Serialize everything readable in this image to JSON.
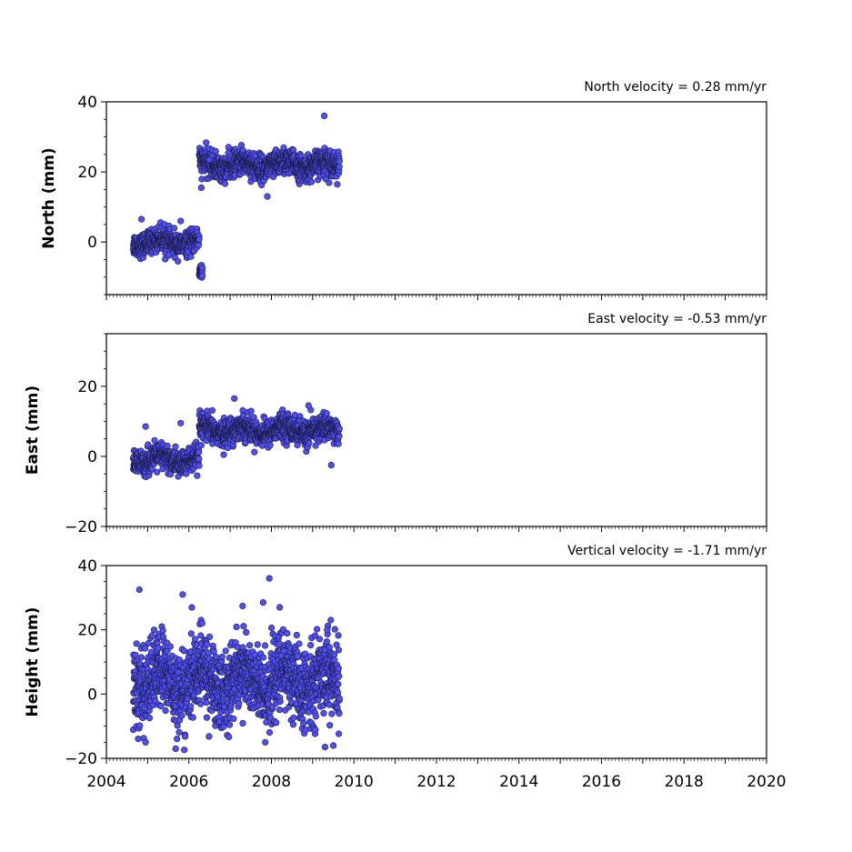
{
  "chart_data": [
    {
      "type": "scatter",
      "title": "North velocity = 0.28 mm/yr",
      "xlabel": "",
      "ylabel": "North (mm)",
      "xlim": [
        2004,
        2020
      ],
      "ylim": [
        -15,
        40
      ],
      "yticks": [
        0,
        20,
        40
      ],
      "show_x_tick_labels": false,
      "marker_color": "#4f4ff5",
      "marker_edge": "#1a1a40",
      "series": [
        {
          "segments": [
            {
              "x": [
                2004.65,
                2006.25
              ],
              "mean": 0,
              "sd": 1.6
            },
            {
              "x": [
                2006.25,
                2006.33
              ],
              "mean": -9,
              "sd": 1.2
            },
            {
              "x": [
                2006.25,
                2009.65
              ],
              "mean": 22,
              "sd": 1.8
            }
          ],
          "extra_points": [
            [
              2004.85,
              6.5
            ],
            [
              2005.8,
              6
            ],
            [
              2009.28,
              36
            ],
            [
              2007.9,
              13
            ],
            [
              2006.3,
              15.5
            ],
            [
              2006.5,
              23.5
            ]
          ]
        }
      ]
    },
    {
      "type": "scatter",
      "title": "East velocity = -0.53 mm/yr",
      "xlabel": "",
      "ylabel": "East (mm)",
      "xlim": [
        2004,
        2020
      ],
      "ylim": [
        -20,
        35
      ],
      "yticks": [
        -20,
        0,
        20
      ],
      "show_x_tick_labels": false,
      "marker_color": "#4f4ff5",
      "marker_edge": "#1a1a40",
      "series": [
        {
          "segments": [
            {
              "x": [
                2004.65,
                2006.25
              ],
              "mean": -1,
              "sd": 1.8
            },
            {
              "x": [
                2006.25,
                2009.65
              ],
              "mean": 7.5,
              "sd": 1.8
            }
          ],
          "extra_points": [
            [
              2007.1,
              16.5
            ],
            [
              2009.45,
              -2.5
            ],
            [
              2005.8,
              9.5
            ],
            [
              2004.95,
              8.5
            ],
            [
              2006.2,
              -5.5
            ],
            [
              2008.9,
              14.5
            ]
          ]
        }
      ]
    },
    {
      "type": "scatter",
      "title": "Vertical velocity = -1.71 mm/yr",
      "xlabel": "",
      "ylabel": "Height (mm)",
      "xlim": [
        2004,
        2020
      ],
      "ylim": [
        -20,
        40
      ],
      "yticks": [
        -20,
        0,
        20,
        40
      ],
      "xticks": [
        2004,
        2006,
        2008,
        2010,
        2012,
        2014,
        2016,
        2018,
        2020
      ],
      "show_x_tick_labels": true,
      "marker_color": "#4f4ff5",
      "marker_edge": "#1a1a40",
      "series": [
        {
          "segments": [
            {
              "x": [
                2004.65,
                2009.65
              ],
              "mean": 4,
              "sd": 6
            }
          ],
          "extra_points": [
            [
              2004.8,
              32.5
            ],
            [
              2005.85,
              31
            ],
            [
              2007.95,
              36
            ],
            [
              2008.2,
              27
            ],
            [
              2007.8,
              28.5
            ],
            [
              2009.35,
              20
            ],
            [
              2004.95,
              -15
            ],
            [
              2009.3,
              -16.5
            ],
            [
              2009.5,
              -16
            ],
            [
              2007.85,
              -15
            ]
          ]
        }
      ]
    }
  ]
}
